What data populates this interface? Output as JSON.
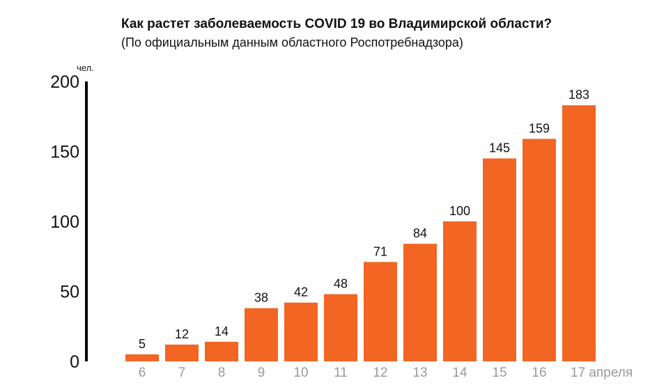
{
  "title": "Как растет заболеваемость COVID 19 во Владимирской области?",
  "subtitle": "(По официальным данным областного Роспотребнадзора)",
  "chart_data": {
    "type": "bar",
    "title": "Как растет заболеваемость COVID 19 во Владимирской области?",
    "subtitle": "(По официальным данным областного Роспотребнадзора)",
    "ylabel": "чел.",
    "xlabel_suffix": "апреля",
    "categories": [
      "6",
      "7",
      "8",
      "9",
      "10",
      "11",
      "12",
      "13",
      "14",
      "15",
      "16",
      "17"
    ],
    "values": [
      5,
      12,
      14,
      38,
      42,
      48,
      71,
      84,
      100,
      145,
      159,
      183
    ],
    "yticks": [
      0,
      50,
      100,
      150,
      200
    ],
    "ylim": [
      0,
      200
    ],
    "bar_color": "#f26522",
    "grid": false,
    "data_labels": true
  }
}
